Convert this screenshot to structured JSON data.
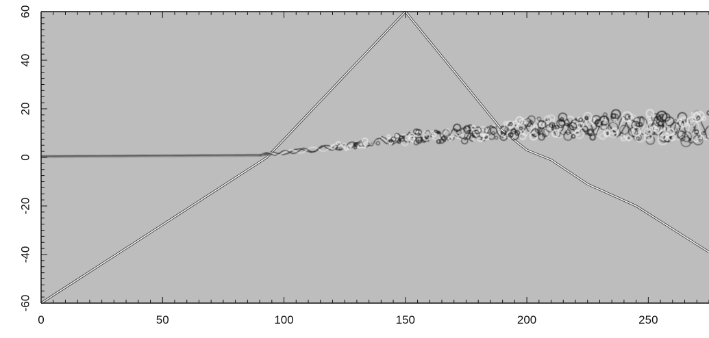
{
  "figure": {
    "type": "grayscale-schlieren-field",
    "colors": {
      "background": "#bdbdbd",
      "axis": "#111111",
      "bright_line": "#f4f4f4",
      "dark_line": "#1a1a1a"
    }
  },
  "axes": {
    "x": {
      "range": [
        0,
        275
      ],
      "major_ticks": [
        0,
        50,
        100,
        150,
        200,
        250
      ],
      "tick_labels": [
        "0",
        "50",
        "100",
        "150",
        "200",
        "250"
      ]
    },
    "y": {
      "range": [
        -60,
        60
      ],
      "major_ticks": [
        60,
        40,
        20,
        0,
        -20,
        -40,
        -60
      ],
      "tick_labels": [
        "60",
        "40",
        "20",
        "0",
        "-20",
        "-40",
        "-60"
      ],
      "label_orientation": "rotated-90"
    }
  },
  "features": {
    "incident_shock": [
      [
        0,
        -60
      ],
      [
        93,
        0
      ],
      [
        150,
        60
      ]
    ],
    "reflected_shock": [
      [
        150,
        60
      ],
      [
        190,
        11
      ],
      [
        200,
        3
      ],
      [
        210,
        -1
      ],
      [
        225,
        -11
      ],
      [
        245,
        -20
      ],
      [
        275,
        -39
      ]
    ],
    "shear_layer_centerline": [
      [
        0,
        0.5
      ],
      [
        90,
        1
      ],
      [
        120,
        4
      ],
      [
        150,
        8
      ],
      [
        180,
        10
      ],
      [
        200,
        12
      ],
      [
        240,
        13
      ],
      [
        275,
        12
      ]
    ]
  }
}
